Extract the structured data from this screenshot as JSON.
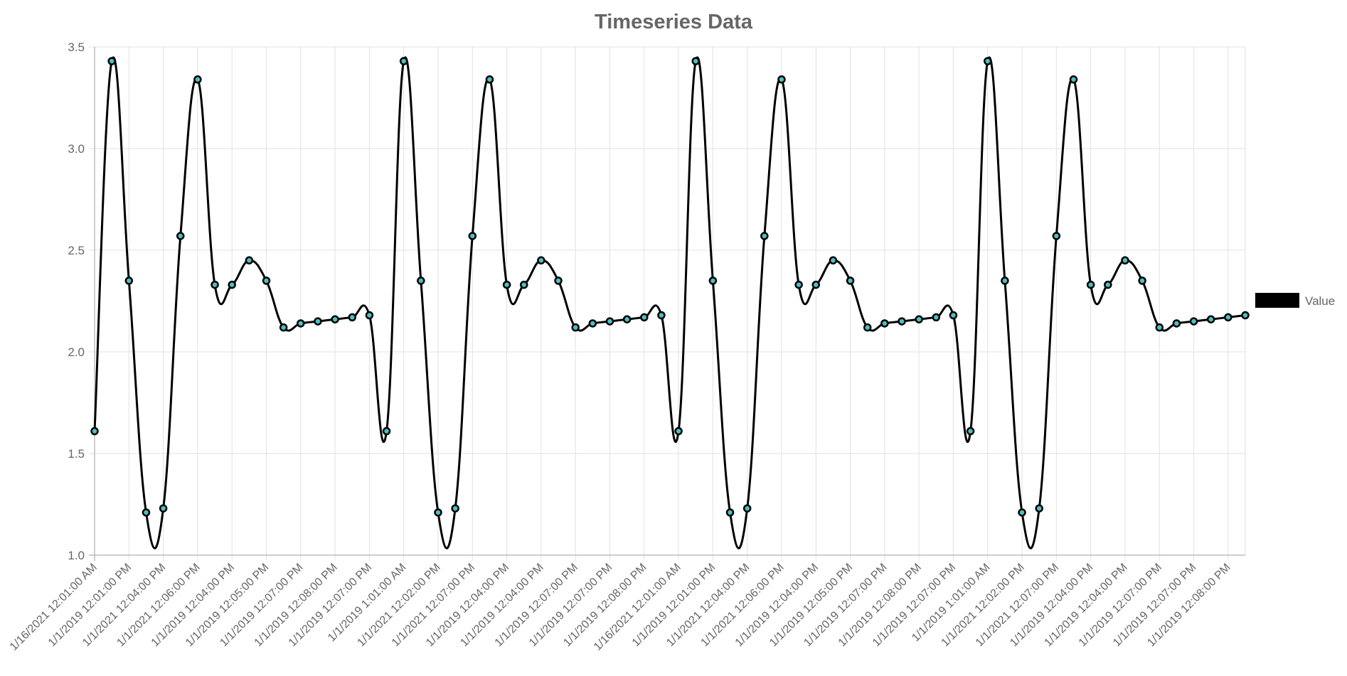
{
  "chart_data": {
    "type": "line",
    "title": "Timeseries Data",
    "xlabel": "",
    "ylabel": "",
    "ylim": [
      1.0,
      3.5
    ],
    "yticks": [
      "1.0",
      "1.5",
      "2.0",
      "2.5",
      "3.0",
      "3.5"
    ],
    "grid": true,
    "legend_position": "right",
    "line_color": "#000000",
    "point_fill_color": "#4bc0c0",
    "series": [
      {
        "name": "Value",
        "values": [
          1.61,
          3.43,
          2.35,
          1.21,
          1.23,
          2.57,
          3.34,
          2.33,
          2.33,
          2.45,
          2.35,
          2.12,
          2.14,
          2.15,
          2.16,
          2.17,
          2.18,
          1.61,
          3.43,
          2.35,
          1.21,
          1.23,
          2.57,
          3.34,
          2.33,
          2.33,
          2.45,
          2.35,
          2.12,
          2.14,
          2.15,
          2.16,
          2.17,
          2.18,
          1.61,
          3.43,
          2.35,
          1.21,
          1.23,
          2.57,
          3.34,
          2.33,
          2.33,
          2.45,
          2.35,
          2.12,
          2.14,
          2.15,
          2.16,
          2.17,
          2.18,
          1.61,
          3.43,
          2.35,
          1.21,
          1.23,
          2.57,
          3.34,
          2.33,
          2.33,
          2.45,
          2.35,
          2.12,
          2.14,
          2.15,
          2.16,
          2.17,
          2.18
        ]
      }
    ],
    "categories": [
      "1/16/2021 12:01:00 AM",
      "",
      "1/1/2019 12:01:00 PM",
      "",
      "1/1/2021 12:04:00 PM",
      "",
      "1/1/2021 12:06:00 PM",
      "",
      "1/1/2019 12:04:00 PM",
      "",
      "1/1/2019 12:05:00 PM",
      "",
      "1/1/2019 12:07:00 PM",
      "",
      "1/1/2019 12:08:00 PM",
      "",
      "1/1/2019 12:07:00 PM",
      "",
      "1/1/2019 1:01:00 AM",
      "",
      "1/1/2021 12:02:00 PM",
      "",
      "1/1/2021 12:07:00 PM",
      "",
      "1/1/2019 12:04:00 PM",
      "",
      "1/1/2019 12:04:00 PM",
      "",
      "1/1/2019 12:07:00 PM",
      "",
      "1/1/2019 12:07:00 PM",
      "",
      "1/1/2019 12:08:00 PM",
      "",
      "1/16/2021 12:01:00 AM",
      "",
      "1/1/2019 12:01:00 PM",
      "",
      "1/1/2021 12:04:00 PM",
      "",
      "1/1/2021 12:06:00 PM",
      "",
      "1/1/2019 12:04:00 PM",
      "",
      "1/1/2019 12:05:00 PM",
      "",
      "1/1/2019 12:07:00 PM",
      "",
      "1/1/2019 12:08:00 PM",
      "",
      "1/1/2019 12:07:00 PM",
      "",
      "1/1/2019 1:01:00 AM",
      "",
      "1/1/2021 12:02:00 PM",
      "",
      "1/1/2021 12:07:00 PM",
      "",
      "1/1/2019 12:04:00 PM",
      "",
      "1/1/2019 12:04:00 PM",
      "",
      "1/1/2019 12:07:00 PM",
      "",
      "1/1/2019 12:07:00 PM",
      "",
      "1/1/2019 12:08:00 PM",
      ""
    ]
  }
}
